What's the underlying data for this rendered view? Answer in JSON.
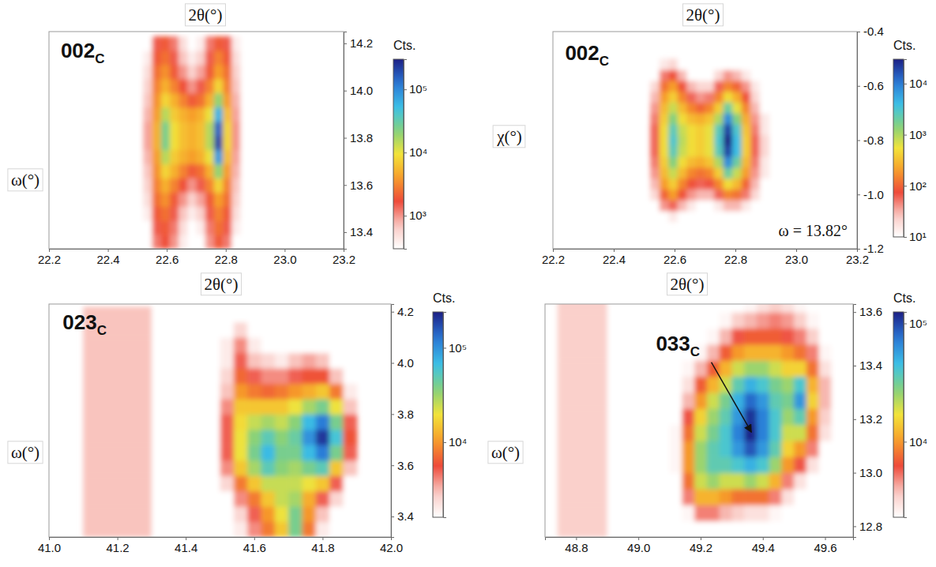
{
  "chart_data": [
    {
      "type": "heatmap",
      "title": "002",
      "title_subscript": "C",
      "x_label": "2θ(°)",
      "y_label": "ω(°)",
      "xlim": [
        22.2,
        23.2
      ],
      "ylim": [
        13.33,
        14.25
      ],
      "xticks": [
        22.2,
        22.4,
        22.6,
        22.8,
        {
          "value": 23,
          "label": "23.0"
        },
        23.2
      ],
      "yticks": [
        13.4,
        13.6,
        13.8,
        {
          "value": 14,
          "label": "14.0"
        },
        14.2
      ],
      "x_edges": [
        22.52,
        22.55,
        22.58,
        22.61,
        22.64,
        22.67,
        22.7,
        22.73,
        22.76,
        22.79,
        22.82,
        22.85,
        22.88
      ],
      "y_edges": [
        13.33,
        13.39,
        13.45,
        13.51,
        13.57,
        13.63,
        13.69,
        13.75,
        13.81,
        13.87,
        13.93,
        13.99,
        14.05,
        14.11,
        14.17,
        14.23
      ],
      "z": [
        [
          300,
          1200,
          1800,
          1000,
          400,
          300,
          300,
          1000,
          2000,
          1200,
          300,
          200
        ],
        [
          300,
          1500,
          2000,
          1200,
          500,
          300,
          400,
          1200,
          2500,
          1500,
          400,
          200
        ],
        [
          400,
          2000,
          2500,
          1500,
          700,
          400,
          600,
          1500,
          3000,
          2000,
          500,
          200
        ],
        [
          500,
          2500,
          3500,
          2000,
          1000,
          600,
          900,
          2000,
          4000,
          2500,
          600,
          250
        ],
        [
          600,
          3000,
          5000,
          3000,
          1800,
          1000,
          1500,
          3000,
          8000,
          3000,
          700,
          300
        ],
        [
          700,
          3500,
          8000,
          5000,
          3000,
          2000,
          2500,
          5000,
          20000,
          4000,
          800,
          300
        ],
        [
          800,
          4000,
          15000,
          7000,
          5000,
          4000,
          5000,
          10000,
          80000,
          6000,
          900,
          300
        ],
        [
          900,
          5000,
          25000,
          9000,
          6000,
          5000,
          6000,
          15000,
          200000,
          8000,
          1000,
          300
        ],
        [
          900,
          5000,
          25000,
          9000,
          6000,
          5000,
          6000,
          15000,
          150000,
          8000,
          1000,
          300
        ],
        [
          800,
          4000,
          15000,
          7000,
          5000,
          4000,
          5000,
          10000,
          60000,
          6000,
          900,
          300
        ],
        [
          700,
          3500,
          8000,
          5000,
          3000,
          2000,
          2500,
          5000,
          20000,
          4000,
          800,
          300
        ],
        [
          600,
          3000,
          5000,
          3000,
          1800,
          1000,
          1500,
          3000,
          8000,
          3000,
          700,
          300
        ],
        [
          500,
          2500,
          3500,
          2000,
          1000,
          600,
          900,
          2000,
          4000,
          2500,
          600,
          250
        ],
        [
          400,
          2000,
          2500,
          1500,
          700,
          400,
          600,
          1500,
          3000,
          2000,
          500,
          200
        ],
        [
          300,
          1500,
          2000,
          1200,
          500,
          300,
          400,
          1200,
          2000,
          1500,
          400,
          200
        ]
      ],
      "colorbar": {
        "label": "Cts.",
        "range": [
          300,
          300000
        ],
        "log": true,
        "ticks": [
          {
            "value": 1000,
            "label": "10³"
          },
          {
            "value": 10000,
            "label": "10⁴"
          },
          {
            "value": 100000,
            "label": "10⁵"
          }
        ]
      }
    },
    {
      "type": "heatmap",
      "title": "002",
      "title_subscript": "C",
      "x_label": "2θ(°)",
      "y_label": "χ(°)",
      "annotation": "ω = 13.82°",
      "xlim": [
        22.2,
        23.2
      ],
      "ylim": [
        -1.2,
        -0.4
      ],
      "xticks": [
        22.2,
        22.4,
        22.6,
        22.8,
        {
          "value": 23,
          "label": "23.0"
        },
        23.2
      ],
      "yticks": [
        -0.4,
        -0.6,
        -0.8,
        {
          "value": -1,
          "label": "-1.0"
        },
        -1.2
      ],
      "x_edges": [
        22.52,
        22.55,
        22.58,
        22.61,
        22.64,
        22.67,
        22.7,
        22.73,
        22.76,
        22.79,
        22.82,
        22.85,
        22.88,
        22.91
      ],
      "y_edges": [
        -1.1,
        -1.06,
        -1.02,
        -0.98,
        -0.94,
        -0.9,
        -0.86,
        -0.82,
        -0.78,
        -0.74,
        -0.7,
        -0.66,
        -0.62,
        -0.58,
        -0.54,
        -0.5
      ],
      "z": [
        [
          5,
          10,
          15,
          10,
          5,
          5,
          5,
          5,
          10,
          10,
          5,
          5,
          5
        ],
        [
          10,
          40,
          60,
          30,
          15,
          10,
          10,
          15,
          30,
          30,
          15,
          10,
          5
        ],
        [
          20,
          100,
          200,
          80,
          40,
          30,
          30,
          60,
          150,
          120,
          50,
          20,
          10
        ],
        [
          30,
          200,
          400,
          150,
          80,
          60,
          70,
          150,
          500,
          300,
          100,
          30,
          10
        ],
        [
          40,
          300,
          800,
          300,
          150,
          120,
          150,
          400,
          2000,
          800,
          200,
          40,
          15
        ],
        [
          50,
          400,
          1500,
          500,
          300,
          250,
          350,
          1000,
          8000,
          2000,
          300,
          50,
          15
        ],
        [
          60,
          500,
          2500,
          800,
          500,
          400,
          600,
          2500,
          20000,
          4000,
          400,
          60,
          20
        ],
        [
          60,
          500,
          3000,
          900,
          500,
          400,
          600,
          3000,
          30000,
          4000,
          400,
          60,
          20
        ],
        [
          60,
          500,
          2500,
          800,
          500,
          400,
          600,
          2500,
          20000,
          3000,
          350,
          50,
          15
        ],
        [
          50,
          400,
          1500,
          500,
          300,
          250,
          350,
          1000,
          8000,
          1500,
          250,
          40,
          15
        ],
        [
          40,
          300,
          800,
          300,
          150,
          100,
          150,
          400,
          2000,
          600,
          150,
          30,
          10
        ],
        [
          30,
          200,
          400,
          150,
          60,
          40,
          50,
          150,
          500,
          250,
          80,
          20,
          10
        ],
        [
          20,
          120,
          200,
          80,
          30,
          20,
          20,
          60,
          150,
          100,
          40,
          15,
          5
        ],
        [
          10,
          50,
          80,
          30,
          10,
          10,
          10,
          20,
          40,
          30,
          15,
          10,
          5
        ],
        [
          5,
          15,
          20,
          10,
          5,
          5,
          5,
          5,
          10,
          10,
          5,
          5,
          5
        ]
      ],
      "colorbar": {
        "label": "Cts.",
        "range": [
          10,
          30000
        ],
        "log": true,
        "ticks": [
          {
            "value": 10,
            "label": "10¹"
          },
          {
            "value": 100,
            "label": "10²"
          },
          {
            "value": 1000,
            "label": "10³"
          },
          {
            "value": 10000,
            "label": "10⁴"
          }
        ]
      }
    },
    {
      "type": "heatmap",
      "title": "023",
      "title_subscript": "C",
      "x_label": "2θ(°)",
      "y_label": "ω(°)",
      "xlim": [
        41.0,
        42.0
      ],
      "ylim": [
        3.32,
        4.23
      ],
      "xticks": [
        {
          "value": 41,
          "label": "41.0"
        },
        41.2,
        41.4,
        41.6,
        41.8,
        {
          "value": 42,
          "label": "42.0"
        }
      ],
      "yticks": [
        3.4,
        3.6,
        3.8,
        {
          "value": 4,
          "label": "4.0"
        },
        4.2
      ],
      "x_edges": [
        41.1,
        41.3,
        41.5,
        41.54,
        41.58,
        41.62,
        41.66,
        41.7,
        41.74,
        41.78,
        41.82,
        41.86,
        41.9
      ],
      "y_edges": [
        3.32,
        3.38,
        3.44,
        3.5,
        3.56,
        3.62,
        3.68,
        3.74,
        3.8,
        3.86,
        3.92,
        3.98,
        4.04,
        4.1,
        4.16,
        4.22
      ],
      "z": [
        [
          3000,
          1000,
          1000,
          2000,
          4000,
          8000,
          15000,
          40000,
          8000,
          2000,
          1000,
          1000
        ],
        [
          3000,
          1000,
          1000,
          2500,
          5000,
          10000,
          20000,
          40000,
          10000,
          3000,
          1500,
          1000
        ],
        [
          3000,
          1000,
          1500,
          4000,
          8000,
          15000,
          25000,
          30000,
          12000,
          5000,
          2500,
          1000
        ],
        [
          3000,
          1000,
          2500,
          8000,
          15000,
          25000,
          25000,
          25000,
          20000,
          15000,
          5000,
          1500
        ],
        [
          3000,
          1000,
          4000,
          15000,
          30000,
          50000,
          35000,
          30000,
          40000,
          50000,
          15000,
          3000
        ],
        [
          3000,
          1000,
          5000,
          20000,
          40000,
          70000,
          40000,
          40000,
          70000,
          120000,
          40000,
          5000
        ],
        [
          3000,
          1000,
          5000,
          20000,
          35000,
          50000,
          35000,
          45000,
          100000,
          200000,
          60000,
          6000
        ],
        [
          3000,
          1000,
          5000,
          18000,
          25000,
          30000,
          25000,
          35000,
          70000,
          120000,
          40000,
          5000
        ],
        [
          3000,
          1000,
          4000,
          15000,
          15000,
          15000,
          15000,
          20000,
          30000,
          40000,
          20000,
          3000
        ],
        [
          3000,
          1000,
          3000,
          10000,
          8000,
          7000,
          8000,
          10000,
          12000,
          15000,
          8000,
          2000
        ],
        [
          3000,
          1000,
          2500,
          7000,
          5000,
          4000,
          4000,
          5000,
          6000,
          6000,
          3000,
          1000
        ],
        [
          3000,
          1000,
          2000,
          5000,
          3000,
          2500,
          2000,
          3000,
          3500,
          3000,
          1500,
          1000
        ],
        [
          3000,
          1000,
          2000,
          4000,
          2000,
          1500,
          1000,
          1000,
          1000,
          1000,
          1000,
          1000
        ],
        [
          3000,
          1000,
          1000,
          2500,
          1500,
          1000,
          1000,
          1000,
          1000,
          1000,
          1000,
          1000
        ],
        [
          3000,
          1000,
          1000,
          1000,
          1000,
          1000,
          1000,
          1000,
          1000,
          1000,
          1000,
          1000
        ]
      ],
      "colorbar": {
        "label": "Cts.",
        "range": [
          1600,
          240000
        ],
        "log": true,
        "ticks": [
          {
            "value": 10000,
            "label": "10⁴"
          },
          {
            "value": 100000,
            "label": "10⁵"
          }
        ]
      }
    },
    {
      "type": "heatmap",
      "title": "033",
      "title_subscript": "C",
      "x_label": "2θ(°)",
      "y_label": "ω(°)",
      "xlim": [
        48.7,
        49.69
      ],
      "ylim": [
        12.76,
        13.63
      ],
      "xticks": [
        48.8,
        {
          "value": 49,
          "label": "49.0"
        },
        49.2,
        49.4,
        49.6
      ],
      "yticks": [
        12.8,
        {
          "value": 13,
          "label": "13.0"
        },
        13.2,
        13.4,
        13.6
      ],
      "x_edges": [
        48.74,
        48.9,
        49.1,
        49.14,
        49.18,
        49.22,
        49.26,
        49.3,
        49.34,
        49.38,
        49.42,
        49.46,
        49.5,
        49.54,
        49.58,
        49.62,
        49.66
      ],
      "y_edges": [
        12.76,
        12.82,
        12.88,
        12.94,
        13.0,
        13.06,
        13.12,
        13.18,
        13.24,
        13.3,
        13.36,
        13.42,
        13.48,
        13.54,
        13.6,
        13.66
      ],
      "z": [
        [
          3500,
          1000,
          1000,
          1500,
          1500,
          1500,
          1500,
          1500,
          1500,
          1500,
          1000,
          1000,
          1000,
          1000,
          1000,
          1000
        ],
        [
          3500,
          1000,
          1000,
          2500,
          5000,
          5000,
          4000,
          3500,
          3000,
          3000,
          2500,
          1500,
          1000,
          1000,
          1000,
          1000
        ],
        [
          3500,
          1000,
          1500,
          5000,
          12000,
          12000,
          10000,
          8000,
          8000,
          8000,
          5000,
          3000,
          1500,
          1000,
          1000,
          1000
        ],
        [
          3500,
          1000,
          2000,
          8000,
          20000,
          25000,
          20000,
          20000,
          25000,
          20000,
          12000,
          5000,
          3000,
          1500,
          1000,
          1000
        ],
        [
          3500,
          1000,
          2500,
          10000,
          25000,
          35000,
          35000,
          40000,
          50000,
          40000,
          25000,
          10000,
          6000,
          3000,
          1500,
          1000
        ],
        [
          3500,
          1000,
          2500,
          10000,
          25000,
          35000,
          40000,
          60000,
          90000,
          60000,
          35000,
          15000,
          10000,
          5000,
          2000,
          1000
        ],
        [
          3500,
          1000,
          2500,
          8000,
          20000,
          30000,
          40000,
          70000,
          120000,
          70000,
          40000,
          20000,
          20000,
          8000,
          3000,
          1000
        ],
        [
          3500,
          1000,
          2000,
          6000,
          15000,
          25000,
          35000,
          60000,
          110000,
          70000,
          40000,
          25000,
          35000,
          10000,
          3500,
          1000
        ],
        [
          3500,
          1000,
          1500,
          4000,
          10000,
          20000,
          30000,
          50000,
          80000,
          60000,
          35000,
          30000,
          60000,
          15000,
          4000,
          1000
        ],
        [
          3500,
          1000,
          1000,
          3000,
          7000,
          12000,
          20000,
          35000,
          50000,
          40000,
          30000,
          25000,
          40000,
          12000,
          4000,
          1000
        ],
        [
          3500,
          1000,
          1000,
          2500,
          4000,
          7000,
          12000,
          20000,
          25000,
          25000,
          20000,
          15000,
          15000,
          8000,
          3000,
          1000
        ],
        [
          3500,
          1000,
          1000,
          1500,
          2500,
          4000,
          7000,
          10000,
          12000,
          12000,
          12000,
          10000,
          8000,
          5000,
          2500,
          1000
        ],
        [
          3500,
          1000,
          1000,
          1000,
          1500,
          2500,
          4000,
          6000,
          7000,
          7000,
          7000,
          6000,
          5000,
          3500,
          2000,
          1000
        ],
        [
          3500,
          1000,
          1000,
          1000,
          1000,
          1500,
          2500,
          3500,
          4000,
          4500,
          5000,
          4500,
          3500,
          2500,
          1500,
          1000
        ],
        [
          3500,
          1000,
          1000,
          1000,
          1000,
          1000,
          1500,
          2000,
          2500,
          3000,
          3500,
          3000,
          2500,
          1500,
          1000,
          1000
        ]
      ],
      "colorbar": {
        "label": "Cts.",
        "range": [
          2300,
          125000
        ],
        "log": true,
        "ticks": [
          {
            "value": 10000,
            "label": "10⁴"
          },
          {
            "value": 100000,
            "label": "10⁵"
          }
        ]
      }
    }
  ]
}
